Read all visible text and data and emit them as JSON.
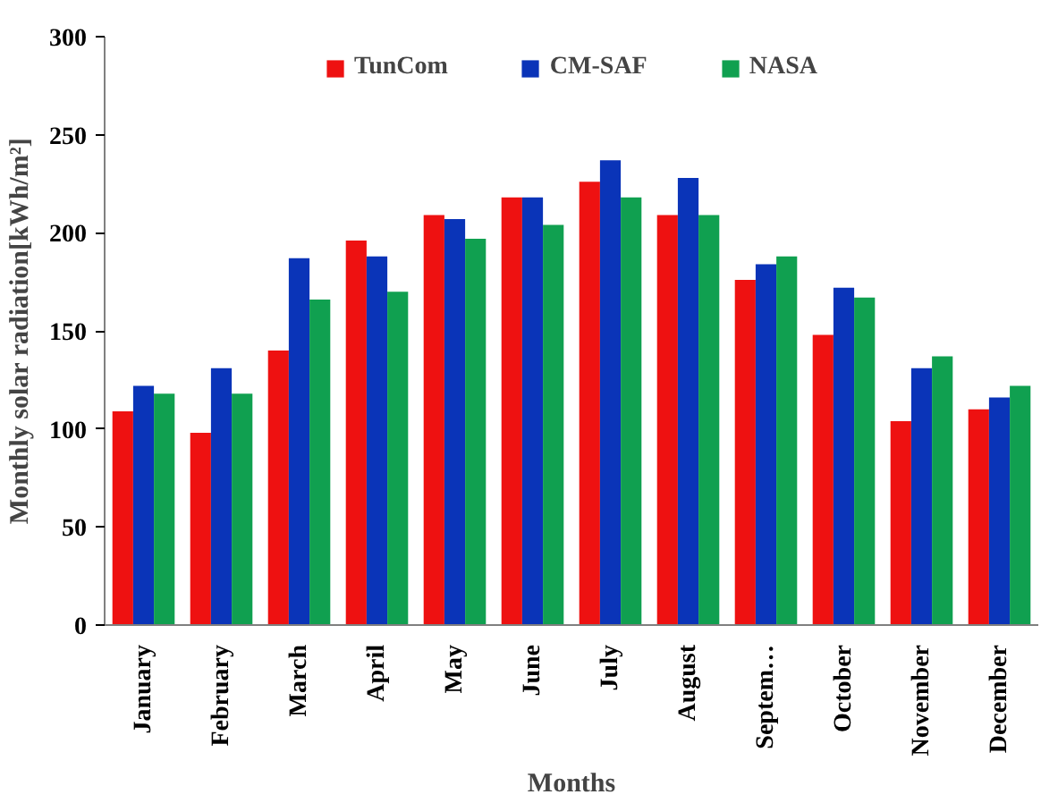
{
  "chart_data": {
    "type": "bar",
    "xlabel": "Months",
    "ylabel": "Monthly solar radiation[kWh/m²]",
    "categories": [
      "January",
      "February",
      "March",
      "April",
      "May",
      "June",
      "July",
      "August",
      "Septem…",
      "October",
      "November",
      "December"
    ],
    "series": [
      {
        "name": "TunCom",
        "color": "#ee1111",
        "values": [
          109,
          98,
          140,
          196,
          209,
          218,
          226,
          209,
          176,
          148,
          104,
          110
        ]
      },
      {
        "name": "CM-SAF",
        "color": "#0a34b8",
        "values": [
          122,
          131,
          187,
          188,
          207,
          218,
          237,
          228,
          184,
          172,
          131,
          116
        ]
      },
      {
        "name": "NASA",
        "color": "#10a050",
        "values": [
          118,
          118,
          166,
          170,
          197,
          204,
          218,
          209,
          188,
          167,
          137,
          122
        ]
      }
    ],
    "ylim": [
      0,
      300
    ],
    "yticks": [
      0,
      50,
      100,
      150,
      200,
      250,
      300
    ],
    "grid": false,
    "legend": "top"
  }
}
